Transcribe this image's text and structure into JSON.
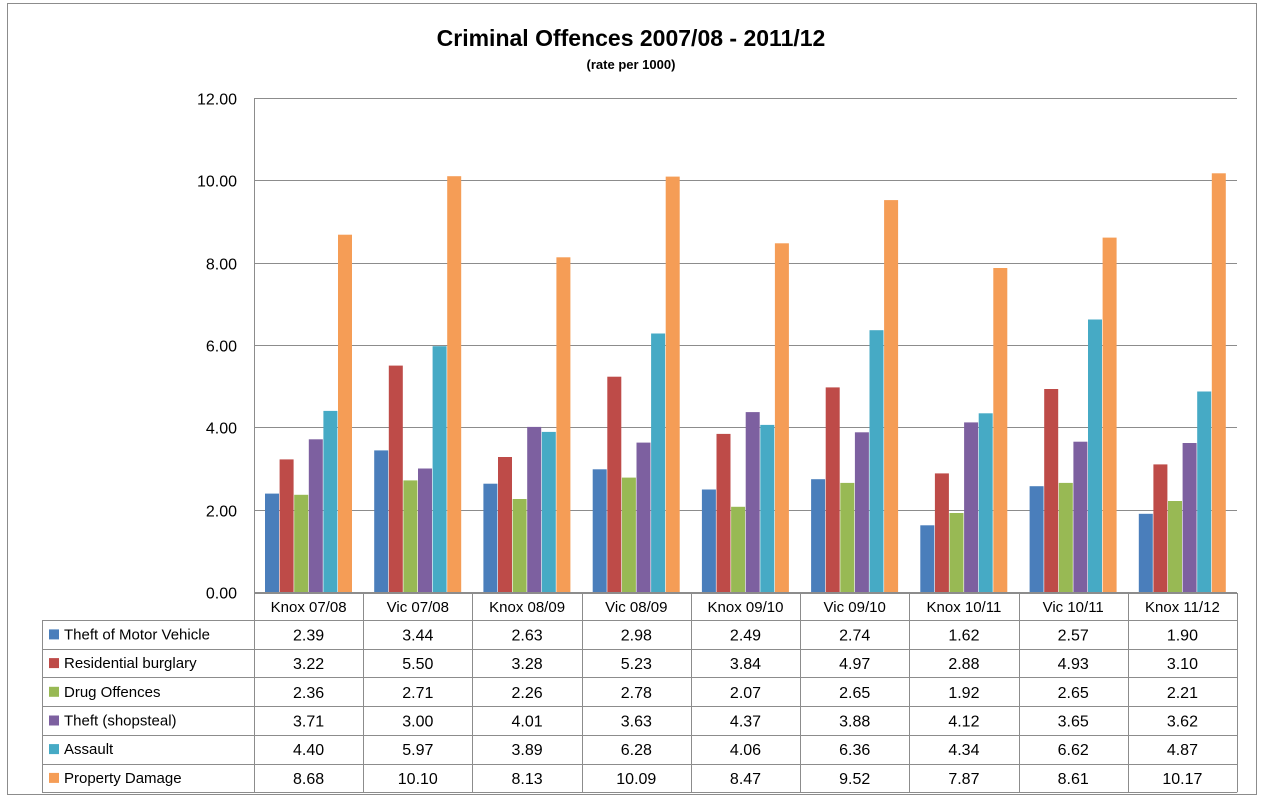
{
  "chart_data": {
    "type": "bar",
    "title": "Criminal Offences 2007/08 - 2011/12",
    "subtitle": "(rate per 1000)",
    "categories": [
      "Knox 07/08",
      "Vic 07/08",
      "Knox 08/09",
      "Vic 08/09",
      "Knox 09/10",
      "Vic 09/10",
      "Knox 10/11",
      "Vic 10/11",
      "Knox 11/12"
    ],
    "ylim": [
      0,
      12
    ],
    "yticks": [
      "0.00",
      "2.00",
      "4.00",
      "6.00",
      "8.00",
      "10.00",
      "12.00"
    ],
    "grid": true,
    "legend": "data-table",
    "series": [
      {
        "name": "Theft of Motor Vehicle",
        "color": "#4a7ebb",
        "values": [
          2.39,
          3.44,
          2.63,
          2.98,
          2.49,
          2.74,
          1.62,
          2.57,
          1.9
        ],
        "labels": [
          "2.39",
          "3.44",
          "2.63",
          "2.98",
          "2.49",
          "2.74",
          "1.62",
          "2.57",
          "1.90"
        ]
      },
      {
        "name": "Residential burglary",
        "color": "#be4b48",
        "values": [
          3.22,
          5.5,
          3.28,
          5.23,
          3.84,
          4.97,
          2.88,
          4.93,
          3.1
        ],
        "labels": [
          "3.22",
          "5.50",
          "3.28",
          "5.23",
          "3.84",
          "4.97",
          "2.88",
          "4.93",
          "3.10"
        ]
      },
      {
        "name": "Drug Offences",
        "color": "#98b954",
        "values": [
          2.36,
          2.71,
          2.26,
          2.78,
          2.07,
          2.65,
          1.92,
          2.65,
          2.21
        ],
        "labels": [
          "2.36",
          "2.71",
          "2.26",
          "2.78",
          "2.07",
          "2.65",
          "1.92",
          "2.65",
          "2.21"
        ]
      },
      {
        "name": "Theft (shopsteal)",
        "color": "#7d60a0",
        "values": [
          3.71,
          3.0,
          4.01,
          3.63,
          4.37,
          3.88,
          4.12,
          3.65,
          3.62
        ],
        "labels": [
          "3.71",
          "3.00",
          "4.01",
          "3.63",
          "4.37",
          "3.88",
          "4.12",
          "3.65",
          "3.62"
        ]
      },
      {
        "name": "Assault",
        "color": "#46aac5",
        "values": [
          4.4,
          5.97,
          3.89,
          6.28,
          4.06,
          6.36,
          4.34,
          6.62,
          4.87
        ],
        "labels": [
          "4.40",
          "5.97",
          "3.89",
          "6.28",
          "4.06",
          "6.36",
          "4.34",
          "6.62",
          "4.87"
        ]
      },
      {
        "name": "Property Damage",
        "color": "#f59d56",
        "values": [
          8.68,
          10.1,
          8.13,
          10.09,
          8.47,
          9.52,
          7.87,
          8.61,
          10.17
        ],
        "labels": [
          "8.68",
          "10.10",
          "8.13",
          "10.09",
          "8.47",
          "9.52",
          "7.87",
          "8.61",
          "10.17"
        ]
      }
    ]
  }
}
